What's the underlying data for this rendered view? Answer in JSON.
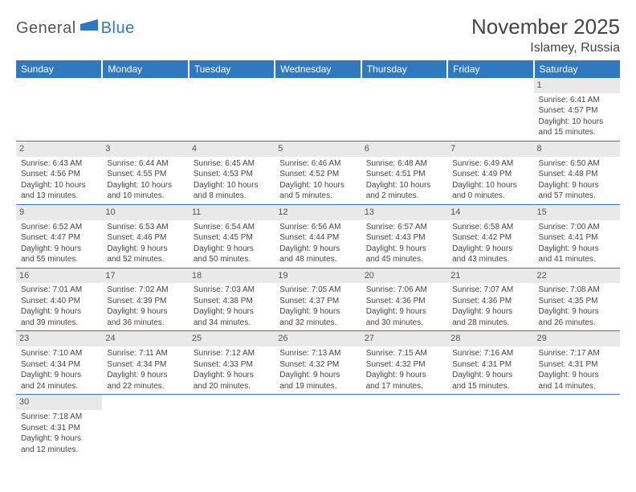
{
  "logo": {
    "part1": "General",
    "part2": "Blue"
  },
  "title": "November 2025",
  "location": "Islamey, Russia",
  "day_headers": [
    "Sunday",
    "Monday",
    "Tuesday",
    "Wednesday",
    "Thursday",
    "Friday",
    "Saturday"
  ],
  "colors": {
    "header_bg": "#3079c0",
    "header_text": "#ffffff",
    "daynum_bg": "#e9e9e9",
    "border": "#3079c0",
    "logo_blue": "#2e78c2",
    "body_text": "#444444",
    "background": "#ffffff"
  },
  "weeks": [
    [
      {
        "n": "",
        "sunrise": "",
        "sunset": "",
        "daylight1": "",
        "daylight2": ""
      },
      {
        "n": "",
        "sunrise": "",
        "sunset": "",
        "daylight1": "",
        "daylight2": ""
      },
      {
        "n": "",
        "sunrise": "",
        "sunset": "",
        "daylight1": "",
        "daylight2": ""
      },
      {
        "n": "",
        "sunrise": "",
        "sunset": "",
        "daylight1": "",
        "daylight2": ""
      },
      {
        "n": "",
        "sunrise": "",
        "sunset": "",
        "daylight1": "",
        "daylight2": ""
      },
      {
        "n": "",
        "sunrise": "",
        "sunset": "",
        "daylight1": "",
        "daylight2": ""
      },
      {
        "n": "1",
        "sunrise": "Sunrise: 6:41 AM",
        "sunset": "Sunset: 4:57 PM",
        "daylight1": "Daylight: 10 hours",
        "daylight2": "and 15 minutes."
      }
    ],
    [
      {
        "n": "2",
        "sunrise": "Sunrise: 6:43 AM",
        "sunset": "Sunset: 4:56 PM",
        "daylight1": "Daylight: 10 hours",
        "daylight2": "and 13 minutes."
      },
      {
        "n": "3",
        "sunrise": "Sunrise: 6:44 AM",
        "sunset": "Sunset: 4:55 PM",
        "daylight1": "Daylight: 10 hours",
        "daylight2": "and 10 minutes."
      },
      {
        "n": "4",
        "sunrise": "Sunrise: 6:45 AM",
        "sunset": "Sunset: 4:53 PM",
        "daylight1": "Daylight: 10 hours",
        "daylight2": "and 8 minutes."
      },
      {
        "n": "5",
        "sunrise": "Sunrise: 6:46 AM",
        "sunset": "Sunset: 4:52 PM",
        "daylight1": "Daylight: 10 hours",
        "daylight2": "and 5 minutes."
      },
      {
        "n": "6",
        "sunrise": "Sunrise: 6:48 AM",
        "sunset": "Sunset: 4:51 PM",
        "daylight1": "Daylight: 10 hours",
        "daylight2": "and 2 minutes."
      },
      {
        "n": "7",
        "sunrise": "Sunrise: 6:49 AM",
        "sunset": "Sunset: 4:49 PM",
        "daylight1": "Daylight: 10 hours",
        "daylight2": "and 0 minutes."
      },
      {
        "n": "8",
        "sunrise": "Sunrise: 6:50 AM",
        "sunset": "Sunset: 4:48 PM",
        "daylight1": "Daylight: 9 hours",
        "daylight2": "and 57 minutes."
      }
    ],
    [
      {
        "n": "9",
        "sunrise": "Sunrise: 6:52 AM",
        "sunset": "Sunset: 4:47 PM",
        "daylight1": "Daylight: 9 hours",
        "daylight2": "and 55 minutes."
      },
      {
        "n": "10",
        "sunrise": "Sunrise: 6:53 AM",
        "sunset": "Sunset: 4:46 PM",
        "daylight1": "Daylight: 9 hours",
        "daylight2": "and 52 minutes."
      },
      {
        "n": "11",
        "sunrise": "Sunrise: 6:54 AM",
        "sunset": "Sunset: 4:45 PM",
        "daylight1": "Daylight: 9 hours",
        "daylight2": "and 50 minutes."
      },
      {
        "n": "12",
        "sunrise": "Sunrise: 6:56 AM",
        "sunset": "Sunset: 4:44 PM",
        "daylight1": "Daylight: 9 hours",
        "daylight2": "and 48 minutes."
      },
      {
        "n": "13",
        "sunrise": "Sunrise: 6:57 AM",
        "sunset": "Sunset: 4:43 PM",
        "daylight1": "Daylight: 9 hours",
        "daylight2": "and 45 minutes."
      },
      {
        "n": "14",
        "sunrise": "Sunrise: 6:58 AM",
        "sunset": "Sunset: 4:42 PM",
        "daylight1": "Daylight: 9 hours",
        "daylight2": "and 43 minutes."
      },
      {
        "n": "15",
        "sunrise": "Sunrise: 7:00 AM",
        "sunset": "Sunset: 4:41 PM",
        "daylight1": "Daylight: 9 hours",
        "daylight2": "and 41 minutes."
      }
    ],
    [
      {
        "n": "16",
        "sunrise": "Sunrise: 7:01 AM",
        "sunset": "Sunset: 4:40 PM",
        "daylight1": "Daylight: 9 hours",
        "daylight2": "and 39 minutes."
      },
      {
        "n": "17",
        "sunrise": "Sunrise: 7:02 AM",
        "sunset": "Sunset: 4:39 PM",
        "daylight1": "Daylight: 9 hours",
        "daylight2": "and 36 minutes."
      },
      {
        "n": "18",
        "sunrise": "Sunrise: 7:03 AM",
        "sunset": "Sunset: 4:38 PM",
        "daylight1": "Daylight: 9 hours",
        "daylight2": "and 34 minutes."
      },
      {
        "n": "19",
        "sunrise": "Sunrise: 7:05 AM",
        "sunset": "Sunset: 4:37 PM",
        "daylight1": "Daylight: 9 hours",
        "daylight2": "and 32 minutes."
      },
      {
        "n": "20",
        "sunrise": "Sunrise: 7:06 AM",
        "sunset": "Sunset: 4:36 PM",
        "daylight1": "Daylight: 9 hours",
        "daylight2": "and 30 minutes."
      },
      {
        "n": "21",
        "sunrise": "Sunrise: 7:07 AM",
        "sunset": "Sunset: 4:36 PM",
        "daylight1": "Daylight: 9 hours",
        "daylight2": "and 28 minutes."
      },
      {
        "n": "22",
        "sunrise": "Sunrise: 7:08 AM",
        "sunset": "Sunset: 4:35 PM",
        "daylight1": "Daylight: 9 hours",
        "daylight2": "and 26 minutes."
      }
    ],
    [
      {
        "n": "23",
        "sunrise": "Sunrise: 7:10 AM",
        "sunset": "Sunset: 4:34 PM",
        "daylight1": "Daylight: 9 hours",
        "daylight2": "and 24 minutes."
      },
      {
        "n": "24",
        "sunrise": "Sunrise: 7:11 AM",
        "sunset": "Sunset: 4:34 PM",
        "daylight1": "Daylight: 9 hours",
        "daylight2": "and 22 minutes."
      },
      {
        "n": "25",
        "sunrise": "Sunrise: 7:12 AM",
        "sunset": "Sunset: 4:33 PM",
        "daylight1": "Daylight: 9 hours",
        "daylight2": "and 20 minutes."
      },
      {
        "n": "26",
        "sunrise": "Sunrise: 7:13 AM",
        "sunset": "Sunset: 4:32 PM",
        "daylight1": "Daylight: 9 hours",
        "daylight2": "and 19 minutes."
      },
      {
        "n": "27",
        "sunrise": "Sunrise: 7:15 AM",
        "sunset": "Sunset: 4:32 PM",
        "daylight1": "Daylight: 9 hours",
        "daylight2": "and 17 minutes."
      },
      {
        "n": "28",
        "sunrise": "Sunrise: 7:16 AM",
        "sunset": "Sunset: 4:31 PM",
        "daylight1": "Daylight: 9 hours",
        "daylight2": "and 15 minutes."
      },
      {
        "n": "29",
        "sunrise": "Sunrise: 7:17 AM",
        "sunset": "Sunset: 4:31 PM",
        "daylight1": "Daylight: 9 hours",
        "daylight2": "and 14 minutes."
      }
    ],
    [
      {
        "n": "30",
        "sunrise": "Sunrise: 7:18 AM",
        "sunset": "Sunset: 4:31 PM",
        "daylight1": "Daylight: 9 hours",
        "daylight2": "and 12 minutes."
      },
      {
        "n": "",
        "sunrise": "",
        "sunset": "",
        "daylight1": "",
        "daylight2": ""
      },
      {
        "n": "",
        "sunrise": "",
        "sunset": "",
        "daylight1": "",
        "daylight2": ""
      },
      {
        "n": "",
        "sunrise": "",
        "sunset": "",
        "daylight1": "",
        "daylight2": ""
      },
      {
        "n": "",
        "sunrise": "",
        "sunset": "",
        "daylight1": "",
        "daylight2": ""
      },
      {
        "n": "",
        "sunrise": "",
        "sunset": "",
        "daylight1": "",
        "daylight2": ""
      },
      {
        "n": "",
        "sunrise": "",
        "sunset": "",
        "daylight1": "",
        "daylight2": ""
      }
    ]
  ]
}
